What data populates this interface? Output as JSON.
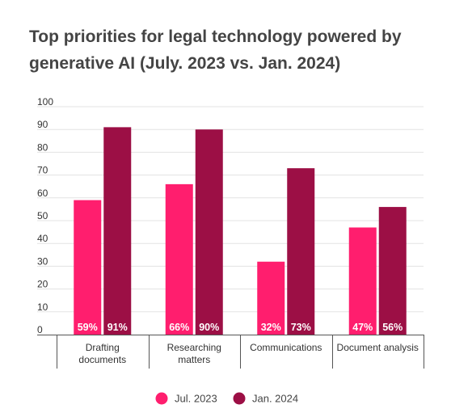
{
  "chart_data": {
    "type": "bar",
    "title": "Top priorities for legal technology powered by generative AI (July. 2023 vs. Jan. 2024)",
    "xlabel": "",
    "ylabel": "",
    "categories": [
      [
        "Drafting",
        "documents"
      ],
      [
        "Researching",
        "matters"
      ],
      [
        "Communications"
      ],
      [
        "Document analysis"
      ]
    ],
    "series": [
      {
        "name": "Jul. 2023",
        "color": "#ff1e6e",
        "values": [
          59,
          66,
          32,
          47
        ],
        "labels": [
          "59%",
          "66%",
          "32%",
          "47%"
        ]
      },
      {
        "name": "Jan. 2024",
        "color": "#9c0f45",
        "values": [
          91,
          90,
          73,
          56
        ],
        "labels": [
          "91%",
          "90%",
          "73%",
          "56%"
        ]
      }
    ],
    "ylim": [
      0,
      100
    ],
    "yticks": [
      "0",
      "10",
      "20",
      "30",
      "40",
      "50",
      "60",
      "70",
      "80",
      "90",
      "100"
    ],
    "grid": true,
    "legend_position": "bottom-center"
  }
}
